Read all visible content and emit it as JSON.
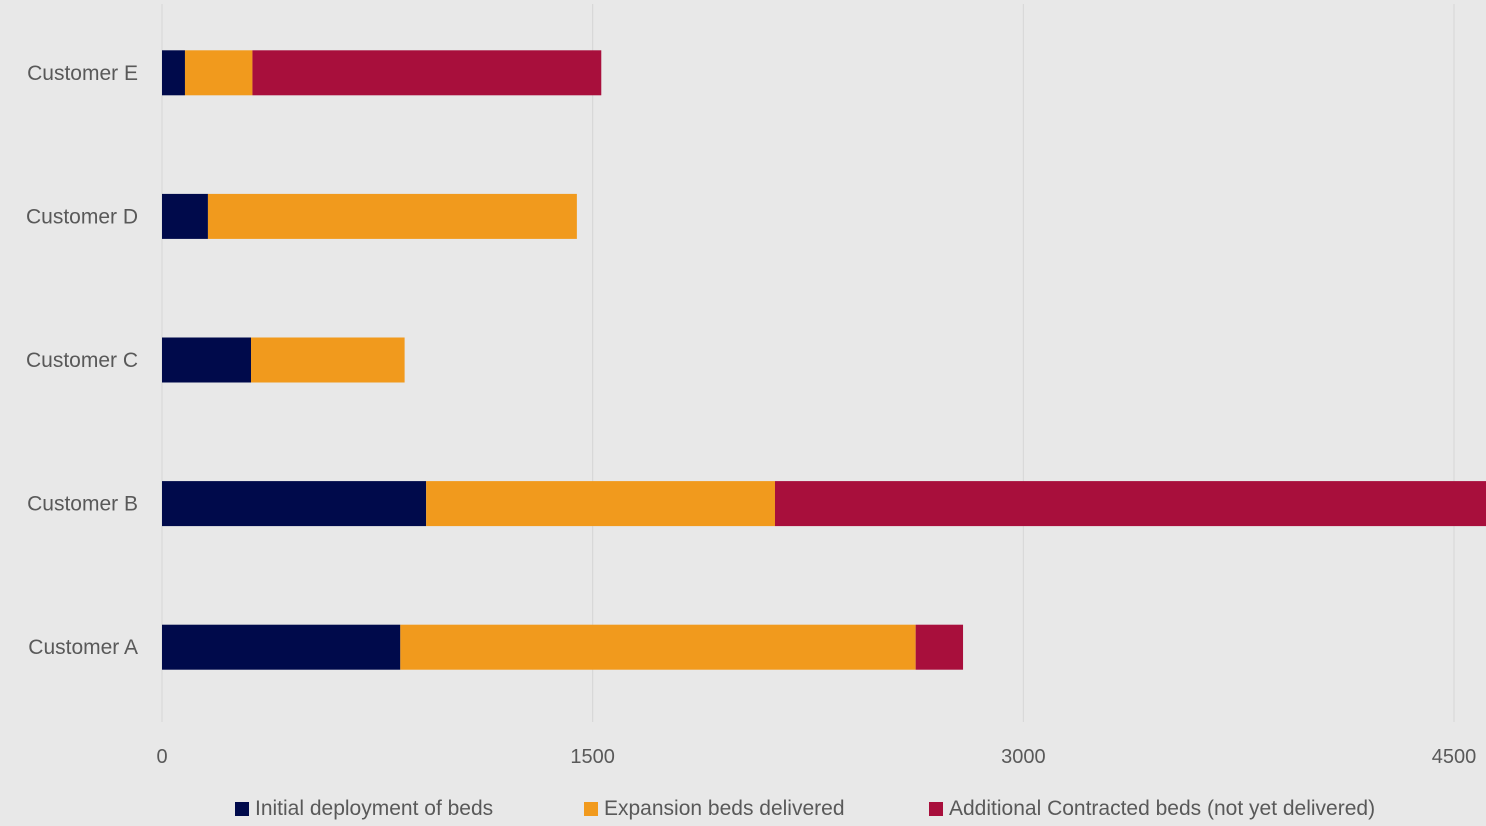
{
  "chart_data": {
    "type": "bar",
    "orientation": "horizontal",
    "stacked": true,
    "title": "",
    "xlabel": "",
    "ylabel": "",
    "categories": [
      "Customer A",
      "Customer B",
      "Customer C",
      "Customer D",
      "Customer E"
    ],
    "xlim": [
      0,
      4500
    ],
    "xticks": [
      0,
      1500,
      3000,
      4500
    ],
    "xtick_labels": [
      "0",
      "1500",
      "3000",
      "4500"
    ],
    "grid": "vertical",
    "legend_position": "bottom",
    "series": [
      {
        "name": "Initial deployment of beds",
        "color": "#000a4b",
        "values": [
          830,
          920,
          310,
          160,
          80
        ]
      },
      {
        "name": "Expansion beds delivered",
        "color": "#f19a1d",
        "values": [
          1795,
          1215,
          535,
          1285,
          235
        ]
      },
      {
        "name": "Additional Contracted beds (not yet delivered)",
        "color": "#a80f3c",
        "values": [
          165,
          2530,
          0,
          0,
          1215
        ]
      }
    ]
  }
}
